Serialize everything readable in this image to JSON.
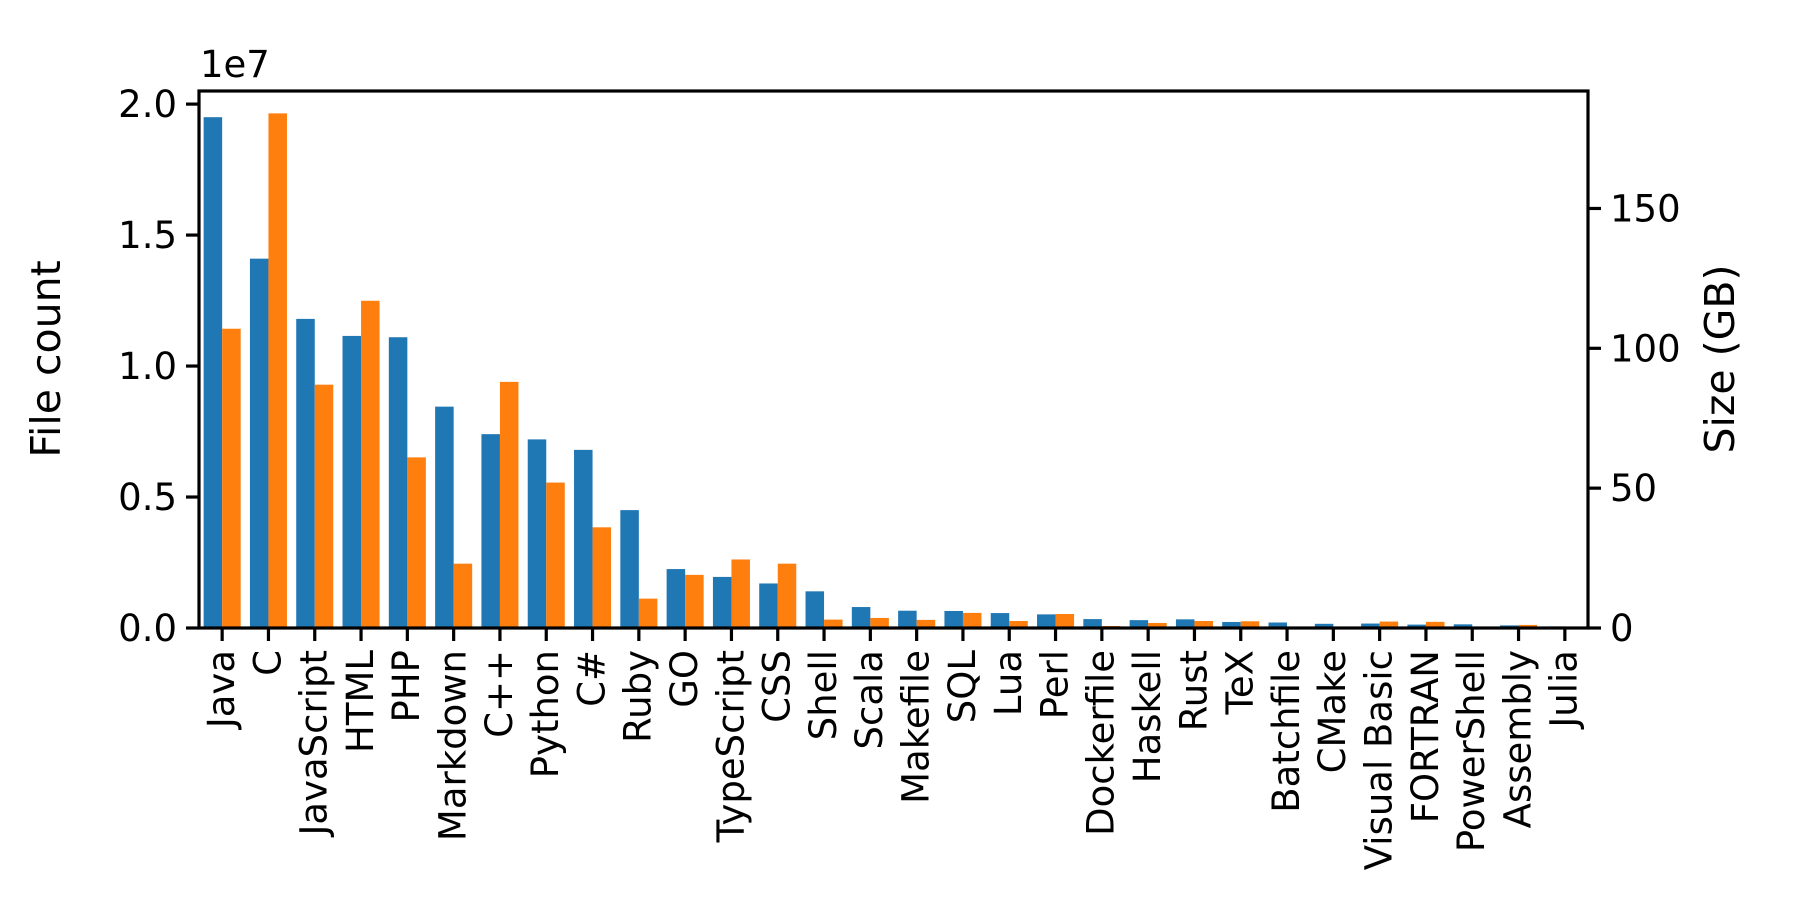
{
  "chart_data": {
    "type": "bar",
    "orientation": "vertical",
    "grid": false,
    "legend": "none",
    "background": "#ffffff",
    "categories": [
      "Java",
      "C",
      "JavaScript",
      "HTML",
      "PHP",
      "Markdown",
      "C++",
      "Python",
      "C#",
      "Ruby",
      "GO",
      "TypeScript",
      "CSS",
      "Shell",
      "Scala",
      "Makefile",
      "SQL",
      "Lua",
      "Perl",
      "Dockerfile",
      "Haskell",
      "Rust",
      "TeX",
      "Batchfile",
      "CMake",
      "Visual Basic",
      "FORTRAN",
      "PowerShell",
      "Assembly",
      "Julia"
    ],
    "series": [
      {
        "name": "File count",
        "axis": "left",
        "color": "#1f77b4",
        "values": [
          19500000,
          14100000,
          11800000,
          11150000,
          11100000,
          8450000,
          7400000,
          7200000,
          6800000,
          4500000,
          2250000,
          1950000,
          1700000,
          1400000,
          800000,
          660000,
          650000,
          570000,
          520000,
          340000,
          300000,
          330000,
          230000,
          210000,
          160000,
          170000,
          130000,
          140000,
          100000,
          60000
        ]
      },
      {
        "name": "Size (GB)",
        "axis": "right",
        "color": "#ff7f0e",
        "values": [
          107,
          184,
          87,
          117,
          61,
          23,
          88,
          52,
          36,
          10.5,
          19,
          24.5,
          23,
          3,
          3.6,
          2.9,
          5.4,
          2.5,
          5,
          0.7,
          1.8,
          2.5,
          2.4,
          0.3,
          0.3,
          2.3,
          2.2,
          0.3,
          1.1,
          0.4
        ]
      }
    ],
    "left_axis": {
      "label": "File count",
      "color": "#1f77b4",
      "offset_text": "1e7",
      "tick_values": [
        0,
        5000000,
        10000000,
        15000000,
        20000000
      ],
      "tick_labels": [
        "0.0",
        "0.5",
        "1.0",
        "1.5",
        "2.0"
      ],
      "range": [
        0,
        20500000
      ]
    },
    "right_axis": {
      "label": "Size (GB)",
      "color": "#ff7f0e",
      "tick_values": [
        0,
        50,
        100,
        150
      ],
      "tick_labels": [
        "0",
        "50",
        "100",
        "150"
      ],
      "range": [
        0,
        192
      ]
    }
  }
}
